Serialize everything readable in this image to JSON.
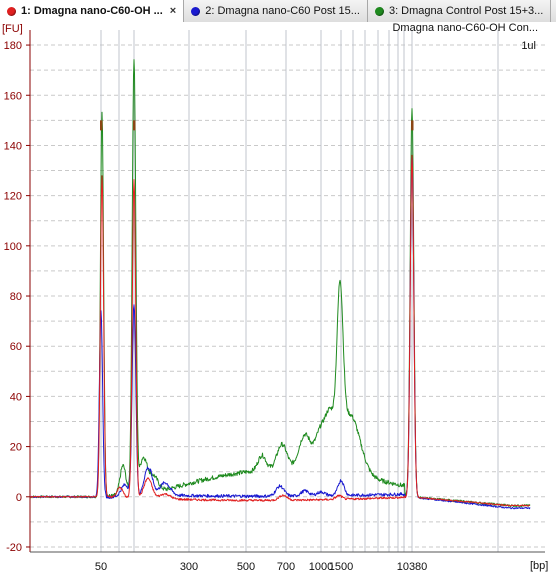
{
  "tabs": [
    {
      "label": "1: Dmagna nano-C60-OH ...",
      "color": "#e02020",
      "active": true
    },
    {
      "label": "2: Dmagna nano-C60 Post 15...",
      "color": "#1a1ad0",
      "active": false
    },
    {
      "label": "3: Dmagna Control Post 15+3...",
      "color": "#1f8a1f",
      "active": false
    }
  ],
  "tab_close": "×",
  "sample_title": "Dmagna nano-C60-OH Con...",
  "sample_subtitle": "1ul",
  "chart_data": {
    "type": "line",
    "ylabel": "[FU]",
    "xlabel": "[bp]",
    "ylim": [
      -22,
      186
    ],
    "yticks": [
      -20,
      0,
      20,
      40,
      60,
      80,
      100,
      120,
      140,
      160,
      180
    ],
    "xticks": [
      "50",
      "300",
      "500",
      "700",
      "1000",
      "1500",
      "10380"
    ],
    "grid": true,
    "series": [
      {
        "name": "1: Dmagna nano-C60-OH ...",
        "color": "#e02020",
        "baseline": [
          0,
          -1.5,
          -3.5
        ],
        "noise": 0.4,
        "peaks": [
          [
            102,
            128,
            1.6
          ],
          [
            134,
            127,
            1.7
          ],
          [
            120,
            4,
            3
          ],
          [
            148,
            8,
            4
          ],
          [
            165,
            2,
            5
          ],
          [
            283,
            2,
            4
          ],
          [
            339,
            1.5,
            3
          ],
          [
            412,
            136,
            1.8
          ]
        ]
      },
      {
        "name": "2: Dmagna nano-C60 Post 15...",
        "color": "#1a1ad0",
        "baseline": [
          0,
          -1,
          -4.5
        ],
        "noise": 0.6,
        "peaks": [
          [
            101,
            74,
            1.6
          ],
          [
            134,
            77,
            1.8
          ],
          [
            125,
            5,
            4
          ],
          [
            148,
            12,
            4
          ],
          [
            165,
            5,
            5
          ],
          [
            280,
            4,
            4
          ],
          [
            305,
            2,
            4
          ],
          [
            321,
            1.5,
            4
          ],
          [
            341,
            6,
            3
          ],
          [
            412,
            136,
            1.8
          ]
        ]
      },
      {
        "name": "3: Dmagna Control Post 15+3...",
        "color": "#1f8a1f",
        "baseline": [
          0,
          2,
          -3.5
        ],
        "noise": 0.9,
        "peaks": [
          [
            102,
            153,
            1.6
          ],
          [
            134,
            173,
            1.8
          ],
          [
            123,
            12,
            3
          ],
          [
            143,
            14,
            4
          ],
          [
            153,
            7,
            5
          ],
          [
            262,
            6,
            4
          ],
          [
            282,
            10,
            5
          ],
          [
            305,
            14,
            6
          ],
          [
            320,
            14,
            5
          ],
          [
            330,
            20,
            5
          ],
          [
            340,
            60,
            3
          ],
          [
            350,
            24,
            10
          ],
          [
            412,
            155,
            1.8
          ]
        ]
      }
    ],
    "markers": {
      "red": [
        4,
        14
      ],
      "blue": [
        6,
        12
      ],
      "green": [
        8,
        10
      ]
    }
  }
}
